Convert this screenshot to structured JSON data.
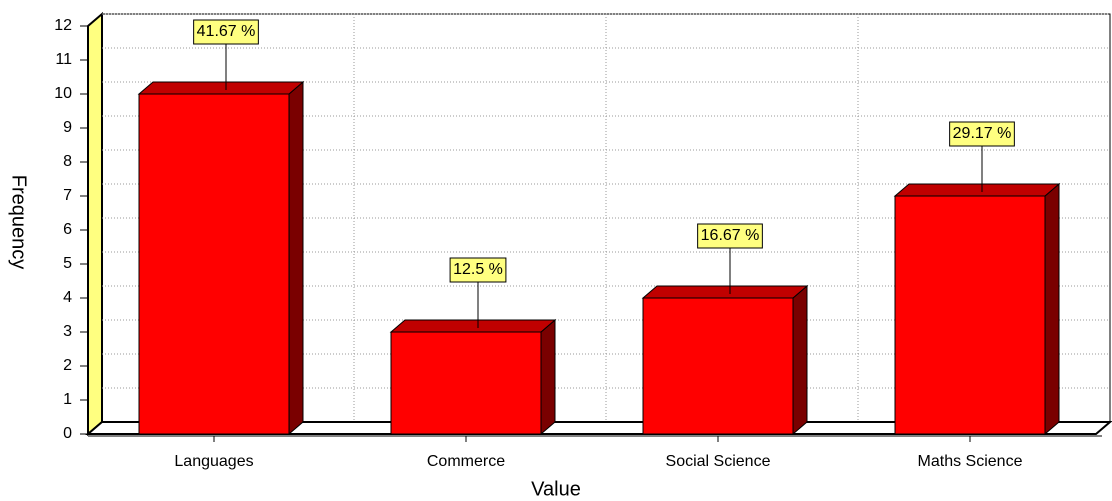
{
  "chart_data": {
    "type": "bar3d",
    "x_label": "Value",
    "y_label": "Frequency",
    "categories": [
      "Languages",
      "Commerce",
      "Social Science",
      "Maths Science"
    ],
    "values": [
      10,
      3,
      4,
      7
    ],
    "annotations": [
      "41.67 %",
      "12.5 %",
      "16.67 %",
      "29.17 %"
    ],
    "color": "#ff0000",
    "side_color": "#7a0000",
    "top_color": "#c00000",
    "label_box_color": "#ffff80",
    "wall_color": "#ffff80",
    "ylim": [
      0,
      12
    ],
    "yticks": [
      0,
      1,
      2,
      3,
      4,
      5,
      6,
      7,
      8,
      9,
      10,
      11,
      12
    ],
    "grid": true
  }
}
